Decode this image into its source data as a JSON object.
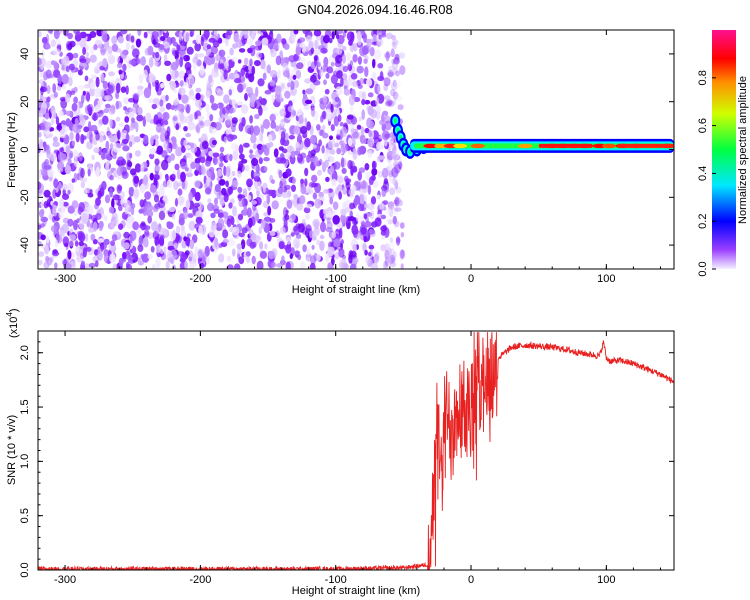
{
  "title": "GN04.2026.094.16.46.R08",
  "chart_data": [
    {
      "type": "heatmap",
      "title": "",
      "xlabel": "Height of straight line (km)",
      "ylabel": "Frequency (Hz)",
      "xlim": [
        -320,
        150
      ],
      "ylim": [
        -50,
        50
      ],
      "xticks": [
        -300,
        -200,
        -100,
        0,
        100
      ],
      "yticks": [
        -40,
        -20,
        0,
        20,
        40
      ],
      "noise_region_x": [
        -320,
        -55
      ],
      "signal_band_hz": [
        0,
        3
      ],
      "colorbar": {
        "label": "Normalized spectral amplitude",
        "range": [
          0,
          1
        ],
        "ticks": [
          "0.0",
          "0.2",
          "0.4",
          "0.6",
          "0.8"
        ],
        "colors": [
          "#f0f0ff",
          "#8000ff",
          "#0000ff",
          "#00ffff",
          "#00ff00",
          "#ffff00",
          "#ff0000",
          "#ff00ff"
        ]
      }
    },
    {
      "type": "line",
      "title": "",
      "xlabel": "Height of straight line (km)",
      "ylabel": "SNR (10 * v/v)",
      "exponent_label": "(x10",
      "exponent_power": "4",
      "xlim": [
        -320,
        150
      ],
      "ylim": [
        0,
        2.2
      ],
      "xticks": [
        -300,
        -200,
        -100,
        0,
        100
      ],
      "yticks": [
        "0.0",
        "0.5",
        "1.0",
        "1.5",
        "2.0"
      ],
      "series": [
        {
          "name": "SNR",
          "color": "#e82020",
          "x": [
            -320,
            -250,
            -200,
            -150,
            -100,
            -50,
            -32,
            -28,
            -25,
            -22,
            -18,
            -15,
            -10,
            -5,
            0,
            5,
            10,
            15,
            20,
            30,
            40,
            50,
            60,
            70,
            80,
            90,
            95,
            98,
            100,
            103,
            110,
            120,
            130,
            140,
            150
          ],
          "y": [
            0.01,
            0.01,
            0.01,
            0.01,
            0.01,
            0.02,
            0.05,
            0.5,
            1.2,
            0.9,
            1.4,
            1.3,
            1.6,
            1.5,
            1.4,
            1.7,
            1.8,
            1.75,
            1.95,
            2.05,
            2.07,
            2.06,
            2.05,
            2.03,
            2.0,
            1.98,
            1.97,
            2.1,
            1.95,
            1.92,
            1.93,
            1.9,
            1.85,
            1.8,
            1.73
          ]
        }
      ]
    }
  ]
}
